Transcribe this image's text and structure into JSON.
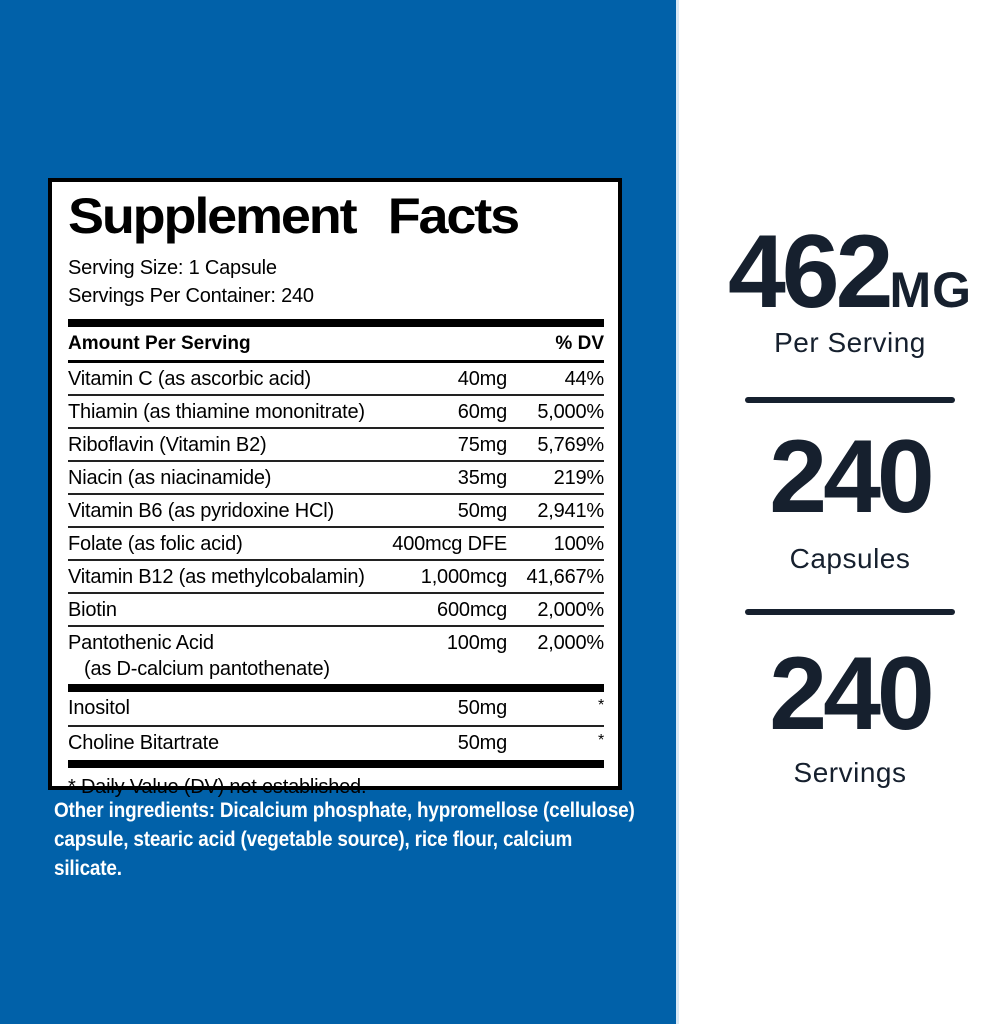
{
  "colors": {
    "background_blue": "#0161A9",
    "navy_text": "#16202E",
    "label_black": "#000000",
    "white": "#FFFFFF"
  },
  "label": {
    "title": "Supplement Facts",
    "serving_size": "Serving Size: 1 Capsule",
    "servings_per_container": "Servings Per Container: 240",
    "header": {
      "amount": "Amount Per Serving",
      "dv": "% DV"
    },
    "rows": [
      {
        "name": "Vitamin C (as ascorbic acid)",
        "amount": "40mg",
        "dv": "44%"
      },
      {
        "name": "Thiamin (as thiamine mononitrate)",
        "amount": "60mg",
        "dv": "5,000%"
      },
      {
        "name": "Riboflavin (Vitamin B2)",
        "amount": "75mg",
        "dv": "5,769%"
      },
      {
        "name": "Niacin (as niacinamide)",
        "amount": "35mg",
        "dv": "219%"
      },
      {
        "name": "Vitamin B6 (as pyridoxine HCl)",
        "amount": "50mg",
        "dv": "2,941%"
      },
      {
        "name": "Folate (as folic acid)",
        "amount": "400mcg DFE",
        "dv": "100%"
      },
      {
        "name": "Vitamin B12 (as methylcobalamin)",
        "amount": "1,000mcg",
        "dv": "41,667%"
      },
      {
        "name": "Biotin",
        "amount": "600mcg",
        "dv": "2,000%"
      },
      {
        "name": "Pantothenic Acid",
        "name2": "(as D-calcium pantothenate)",
        "amount": "100mg",
        "dv": "2,000%"
      }
    ],
    "rows2": [
      {
        "name": "Inositol",
        "amount": "50mg",
        "dv": "*"
      },
      {
        "name": "Choline Bitartrate",
        "amount": "50mg",
        "dv": "*"
      }
    ],
    "footnote": "* Daily Value (DV) not established."
  },
  "other_ingredients": "Other ingredients: Dicalcium phosphate, hypromellose (cellulose) capsule, stearic acid (vegetable source), rice flour, calcium silicate.",
  "stats": [
    {
      "value": "462",
      "unit": "MG",
      "label": "Per Serving"
    },
    {
      "value": "240",
      "unit": "",
      "label": "Capsules"
    },
    {
      "value": "240",
      "unit": "",
      "label": "Servings"
    }
  ]
}
